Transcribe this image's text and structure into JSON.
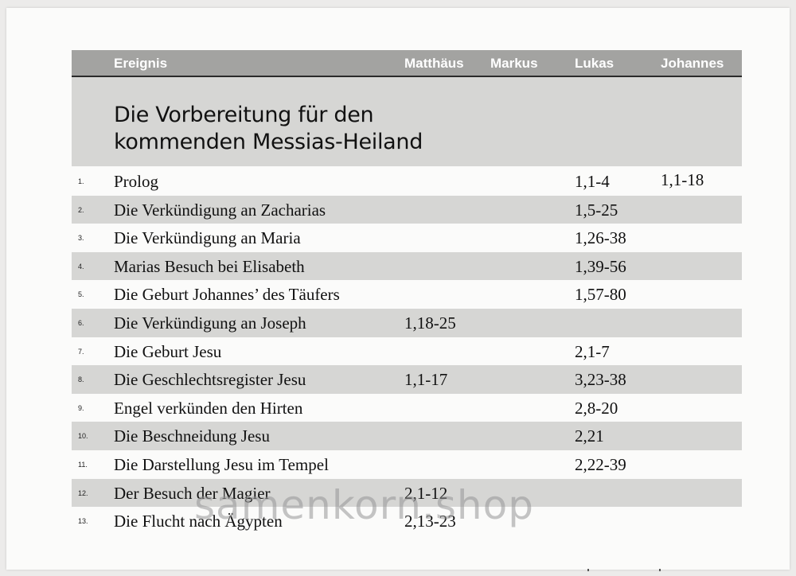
{
  "table": {
    "columns": [
      "Ereignis",
      "Matthäus",
      "Markus",
      "Lukas",
      "Johannes"
    ],
    "section_title": "Die Vorbereitung für den\nkommenden Messias-Heiland",
    "rows": [
      {
        "num": "1.",
        "event": "Prolog",
        "matthaeus": "",
        "markus": "",
        "lukas": "1,1-4",
        "johannes": "1,1-18"
      },
      {
        "num": "2.",
        "event": "Die Verkündigung an Zacharias",
        "matthaeus": "",
        "markus": "",
        "lukas": "1,5-25",
        "johannes": ""
      },
      {
        "num": "3.",
        "event": "Die Verkündigung an Maria",
        "matthaeus": "",
        "markus": "",
        "lukas": "1,26-38",
        "johannes": ""
      },
      {
        "num": "4.",
        "event": "Marias Besuch bei Elisabeth",
        "matthaeus": "",
        "markus": "",
        "lukas": "1,39-56",
        "johannes": ""
      },
      {
        "num": "5.",
        "event": "Die Geburt Johannes’ des Täufers",
        "matthaeus": "",
        "markus": "",
        "lukas": "1,57-80",
        "johannes": ""
      },
      {
        "num": "6.",
        "event": "Die Verkündigung an Joseph",
        "matthaeus": "1,18-25",
        "markus": "",
        "lukas": "",
        "johannes": ""
      },
      {
        "num": "7.",
        "event": "Die Geburt Jesu",
        "matthaeus": "",
        "markus": "",
        "lukas": "2,1-7",
        "johannes": ""
      },
      {
        "num": "8.",
        "event": "Die Geschlechtsregister Jesu",
        "matthaeus": "1,1-17",
        "markus": "",
        "lukas": "3,23-38",
        "johannes": ""
      },
      {
        "num": "9.",
        "event": "Engel verkünden den Hirten",
        "matthaeus": "",
        "markus": "",
        "lukas": "2,8-20",
        "johannes": ""
      },
      {
        "num": "10.",
        "event": "Die Beschneidung Jesu",
        "matthaeus": "",
        "markus": "",
        "lukas": "2,21",
        "johannes": ""
      },
      {
        "num": "11.",
        "event": "Die Darstellung Jesu im Tempel",
        "matthaeus": "",
        "markus": "",
        "lukas": "2,22-39",
        "johannes": ""
      },
      {
        "num": "12.",
        "event": "Der Besuch der Magier",
        "matthaeus": "2,1-12",
        "markus": "",
        "lukas": "",
        "johannes": ""
      },
      {
        "num": "13.",
        "event": "Die Flucht nach Ägypten",
        "matthaeus": "2,13-23",
        "markus": "",
        "lukas": "",
        "johannes": ""
      }
    ]
  },
  "watermark": "samenkorn.shop",
  "colors": {
    "header_bg": "#a3a3a1",
    "band_bg": "#d6d6d4",
    "page_bg": "#fbfbfa",
    "text": "#111111"
  }
}
